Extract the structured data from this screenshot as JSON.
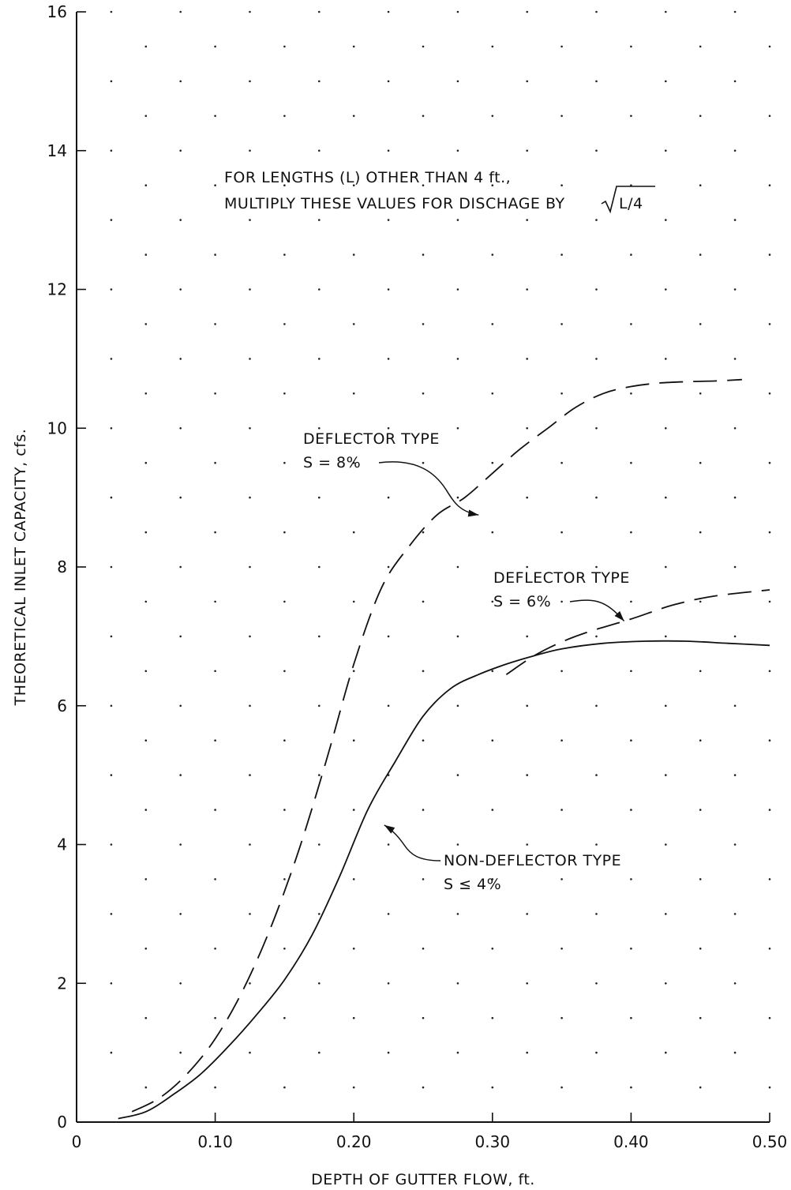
{
  "chart_data": {
    "type": "line",
    "title": "",
    "xlabel": "DEPTH OF GUTTER FLOW, ft.",
    "ylabel": "THEORETICAL INLET CAPACITY, cfs.",
    "xlim": [
      0,
      0.5
    ],
    "ylim": [
      0,
      16
    ],
    "x_ticks": [
      0,
      0.1,
      0.2,
      0.3,
      0.4,
      0.5
    ],
    "x_tick_labels": [
      "0",
      "0.10",
      "0.20",
      "0.30",
      "0.40",
      "0.50"
    ],
    "y_ticks": [
      0,
      2,
      4,
      6,
      8,
      10,
      12,
      14,
      16
    ],
    "y_tick_labels": [
      "0",
      "2",
      "4",
      "6",
      "8",
      "10",
      "12",
      "14",
      "16"
    ],
    "grid": "dotted points at 0.05 ft by 1 cfs",
    "note_lines": [
      "FOR LENGTHS (L) OTHER THAN 4 ft.,",
      "MULTIPLY THESE VALUES FOR DISCHAGE BY"
    ],
    "note_formula": "L/4",
    "series": [
      {
        "label_lines": [
          "DEFLECTOR TYPE",
          "S = 8%"
        ],
        "style": "dashed",
        "x": [
          0.04,
          0.06,
          0.08,
          0.1,
          0.12,
          0.14,
          0.16,
          0.18,
          0.2,
          0.22,
          0.24,
          0.26,
          0.28,
          0.3,
          0.32,
          0.34,
          0.36,
          0.38,
          0.4,
          0.42,
          0.44,
          0.46,
          0.48
        ],
        "y": [
          0.15,
          0.35,
          0.7,
          1.2,
          1.9,
          2.8,
          3.9,
          5.2,
          6.6,
          7.7,
          8.3,
          8.75,
          9.0,
          9.35,
          9.7,
          10.0,
          10.3,
          10.5,
          10.6,
          10.65,
          10.67,
          10.68,
          10.7
        ]
      },
      {
        "label_lines": [
          "DEFLECTOR TYPE",
          "S = 6%"
        ],
        "style": "dashed",
        "x": [
          0.31,
          0.33,
          0.35,
          0.37,
          0.4,
          0.43,
          0.46,
          0.5
        ],
        "y": [
          6.45,
          6.72,
          6.92,
          7.07,
          7.25,
          7.45,
          7.58,
          7.67
        ]
      },
      {
        "label_lines": [
          "NON-DEFLECTOR TYPE",
          "S ≤ 4%"
        ],
        "style": "solid",
        "x": [
          0.03,
          0.05,
          0.07,
          0.09,
          0.11,
          0.13,
          0.15,
          0.17,
          0.19,
          0.21,
          0.23,
          0.25,
          0.27,
          0.29,
          0.31,
          0.33,
          0.35,
          0.38,
          0.41,
          0.44,
          0.47,
          0.5
        ],
        "y": [
          0.05,
          0.15,
          0.4,
          0.7,
          1.1,
          1.55,
          2.05,
          2.7,
          3.55,
          4.5,
          5.2,
          5.85,
          6.25,
          6.45,
          6.6,
          6.72,
          6.82,
          6.9,
          6.93,
          6.93,
          6.9,
          6.87
        ]
      }
    ]
  }
}
